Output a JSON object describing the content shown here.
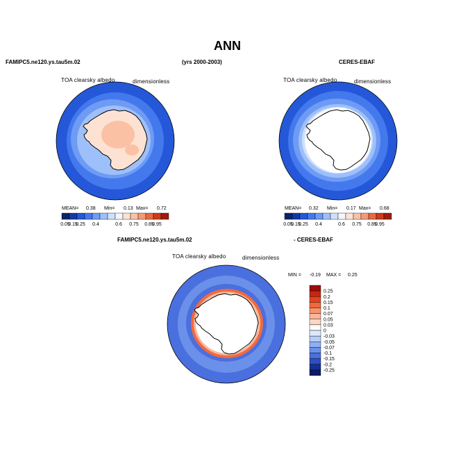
{
  "page": {
    "title": "ANN",
    "left_top_label": "FAMIPC5.ne120.ys.tau5m.02",
    "years_label": "(yrs 2000-2003)",
    "right_top_label": "CERES-EBAF",
    "diff_left_label": "FAMIPC5.ne120.ys.tau5m.02",
    "diff_right_label": "- CERES-EBAF"
  },
  "panels": {
    "model": {
      "variable": "TOA clearsky albedo",
      "units": "dimensionless",
      "mean_label": "MEAN=",
      "mean": "0.38",
      "min_label": "Min=",
      "min": "0.13",
      "max_label": "Max=",
      "max": "0.72"
    },
    "obs": {
      "variable": "TOA clearsky albedo",
      "units": "dimensionless",
      "mean_label": "MEAN=",
      "mean": "0.32",
      "min_label": "Min=",
      "min": "0.17",
      "max_label": "Max=",
      "max": "0.68"
    },
    "diff": {
      "variable": "TOA clearsky albedo",
      "units": "dimensionless",
      "min_label": "MIN =",
      "min": "-0.19",
      "max_label": "MAX =",
      "max": "0.25"
    }
  },
  "chart_data": [
    {
      "type": "heatmap",
      "projection": "south-polar-stereographic",
      "name": "FAMIPC5.ne120.ys.tau5m.02",
      "title": "TOA clearsky albedo",
      "units": "dimensionless",
      "stats": {
        "mean": 0.38,
        "min": 0.13,
        "max": 0.72
      },
      "colorbar_ticks": [
        "0.05",
        "0.15",
        "0.25",
        "0.4",
        "0.6",
        "0.75",
        "0.85",
        "0.95"
      ],
      "zones": [
        {
          "region": "outer ocean",
          "value": 0.15
        },
        {
          "region": "mid ocean",
          "value": 0.25
        },
        {
          "region": "sea ice edge",
          "value": 0.4
        },
        {
          "region": "Antarctica interior",
          "value": 0.6
        },
        {
          "region": "Antarctic plateau",
          "value": 0.65
        }
      ]
    },
    {
      "type": "heatmap",
      "projection": "south-polar-stereographic",
      "name": "CERES-EBAF",
      "title": "TOA clearsky albedo",
      "units": "dimensionless",
      "stats": {
        "mean": 0.32,
        "min": 0.17,
        "max": 0.68
      },
      "colorbar_ticks": [
        "0.05",
        "0.15",
        "0.25",
        "0.4",
        "0.6",
        "0.75",
        "0.85",
        "0.95"
      ],
      "zones": [
        {
          "region": "outer ocean",
          "value": 0.15
        },
        {
          "region": "mid ocean",
          "value": 0.25
        },
        {
          "region": "sea ice",
          "value": 0.4
        },
        {
          "region": "Antarctica",
          "value": "missing"
        }
      ]
    },
    {
      "type": "heatmap",
      "projection": "south-polar-stereographic",
      "name": "FAMIPC5.ne120.ys.tau5m.02 - CERES-EBAF",
      "title": "TOA clearsky albedo",
      "units": "dimensionless",
      "stats": {
        "min": -0.19,
        "max": 0.25
      },
      "colorbar_ticks": [
        "0.25",
        "0.2",
        "0.15",
        "0.1",
        "0.07",
        "0.05",
        "0.03",
        "0",
        "-0.03",
        "-0.05",
        "-0.07",
        "-0.1",
        "-0.15",
        "-0.2",
        "-0.25"
      ],
      "zones": [
        {
          "region": "open ocean",
          "value": -0.1
        },
        {
          "region": "ice edge ring",
          "value": 0.15
        },
        {
          "region": "Antarctica",
          "value": "missing"
        }
      ]
    }
  ],
  "colors": {
    "seq": [
      "#08256b",
      "#1238a8",
      "#2458d8",
      "#4479ee",
      "#6e9bf4",
      "#9ec0fa",
      "#cfe0fd",
      "#f4f6fb",
      "#fde2d3",
      "#fbc1a4",
      "#f49a79",
      "#e8693f",
      "#ce3a1c",
      "#a11b0e"
    ],
    "div": [
      "#9a0d09",
      "#c62611",
      "#e5431f",
      "#f1693e",
      "#f69472",
      "#f9b69b",
      "#fbd6c4",
      "#fbfbfb",
      "#dce8fb",
      "#b6cdf6",
      "#8fb0f0",
      "#6a90ea",
      "#4a6fde",
      "#2e4fc4",
      "#182f92",
      "#0a1a63"
    ]
  }
}
